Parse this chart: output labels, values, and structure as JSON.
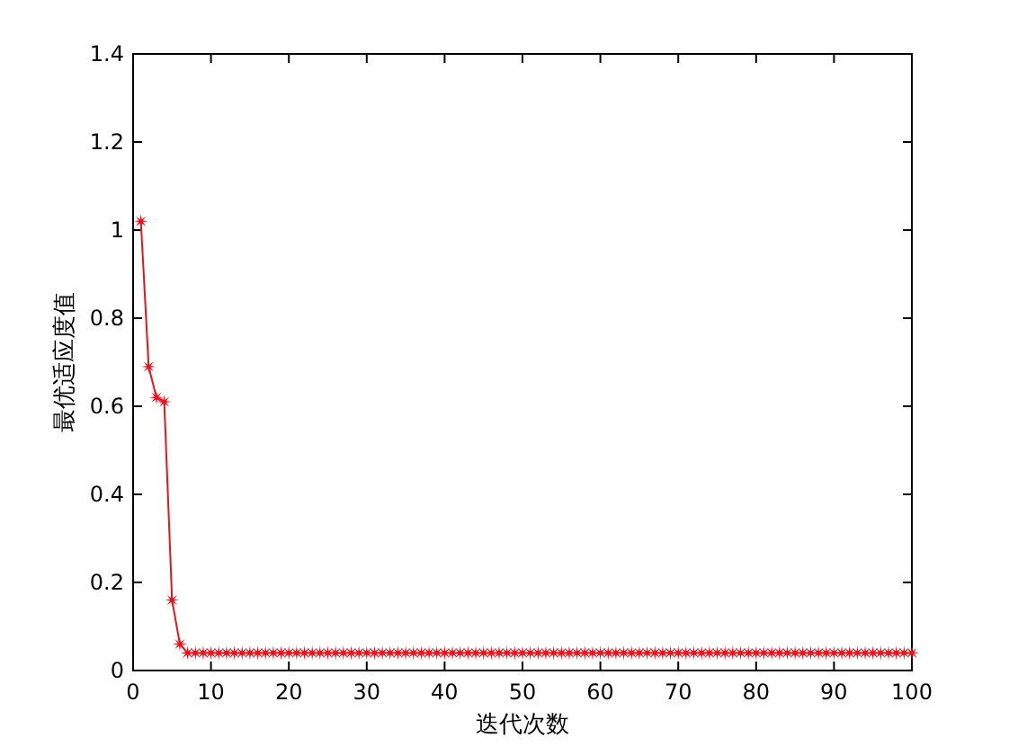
{
  "chart_data": {
    "type": "line",
    "xlabel": "迭代次数",
    "ylabel": "最优适应度值",
    "x": [
      1,
      2,
      3,
      4,
      5,
      6,
      7,
      8,
      9,
      10,
      11,
      12,
      13,
      14,
      15,
      16,
      17,
      18,
      19,
      20,
      21,
      22,
      23,
      24,
      25,
      26,
      27,
      28,
      29,
      30,
      31,
      32,
      33,
      34,
      35,
      36,
      37,
      38,
      39,
      40,
      41,
      42,
      43,
      44,
      45,
      46,
      47,
      48,
      49,
      50,
      51,
      52,
      53,
      54,
      55,
      56,
      57,
      58,
      59,
      60,
      61,
      62,
      63,
      64,
      65,
      66,
      67,
      68,
      69,
      70,
      71,
      72,
      73,
      74,
      75,
      76,
      77,
      78,
      79,
      80,
      81,
      82,
      83,
      84,
      85,
      86,
      87,
      88,
      89,
      90,
      91,
      92,
      93,
      94,
      95,
      96,
      97,
      98,
      99,
      100
    ],
    "series": [
      {
        "color": "#e8141e",
        "values": [
          1.02,
          0.69,
          0.62,
          0.61,
          0.16,
          0.06,
          0.04,
          0.04,
          0.04,
          0.04,
          0.04,
          0.04,
          0.04,
          0.04,
          0.04,
          0.04,
          0.04,
          0.04,
          0.04,
          0.04,
          0.04,
          0.04,
          0.04,
          0.04,
          0.04,
          0.04,
          0.04,
          0.04,
          0.04,
          0.04,
          0.04,
          0.04,
          0.04,
          0.04,
          0.04,
          0.04,
          0.04,
          0.04,
          0.04,
          0.04,
          0.04,
          0.04,
          0.04,
          0.04,
          0.04,
          0.04,
          0.04,
          0.04,
          0.04,
          0.04,
          0.04,
          0.04,
          0.04,
          0.04,
          0.04,
          0.04,
          0.04,
          0.04,
          0.04,
          0.04,
          0.04,
          0.04,
          0.04,
          0.04,
          0.04,
          0.04,
          0.04,
          0.04,
          0.04,
          0.04,
          0.04,
          0.04,
          0.04,
          0.04,
          0.04,
          0.04,
          0.04,
          0.04,
          0.04,
          0.04,
          0.04,
          0.04,
          0.04,
          0.04,
          0.04,
          0.04,
          0.04,
          0.04,
          0.04,
          0.04,
          0.04,
          0.04,
          0.04,
          0.04,
          0.04,
          0.04,
          0.04,
          0.04,
          0.04,
          0.04
        ]
      }
    ],
    "xlim": [
      0,
      100
    ],
    "xticks": [
      0,
      10,
      20,
      30,
      40,
      50,
      60,
      70,
      80,
      90,
      100
    ],
    "ylim": [
      0,
      1.4
    ],
    "yticks": [
      0,
      0.2,
      0.4,
      0.6,
      0.8,
      1,
      1.2,
      1.4
    ],
    "marker": "star",
    "line_style": "solid",
    "grid": false
  }
}
